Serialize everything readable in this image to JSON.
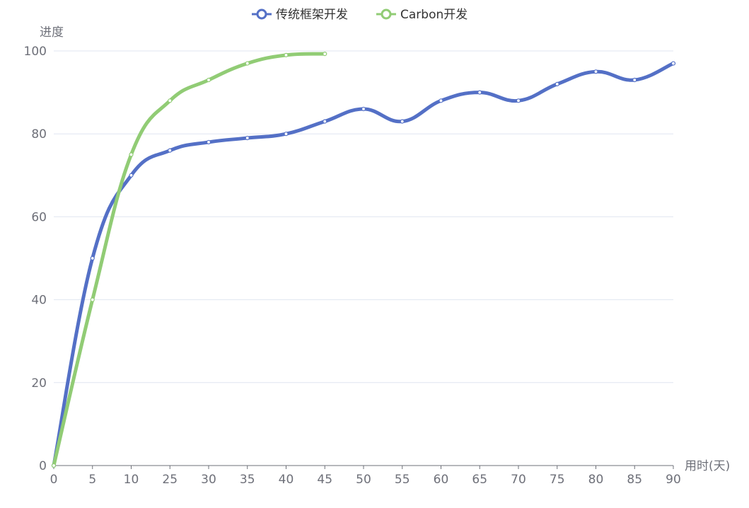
{
  "chart_data": {
    "type": "line",
    "smooth": true,
    "x": [
      0,
      5,
      10,
      25,
      30,
      35,
      40,
      45,
      50,
      55,
      60,
      65,
      70,
      75,
      80,
      85,
      90
    ],
    "xlabel": "用时(天)",
    "ylabel": "进度",
    "ylim": [
      0,
      100
    ],
    "yticks": [
      0,
      20,
      40,
      60,
      80,
      100
    ],
    "grid": true,
    "legend_position": "top-center",
    "series": [
      {
        "name": "传统框架开发",
        "color": "#5470c6",
        "values": [
          0,
          50,
          70,
          76,
          78,
          79,
          80,
          83,
          86,
          83,
          88,
          90,
          88,
          92,
          95,
          93,
          97
        ]
      },
      {
        "name": "Carbon开发",
        "color": "#91cc75",
        "values": [
          0,
          40,
          75,
          88,
          93,
          97,
          99,
          99.3,
          null,
          null,
          null,
          null,
          null,
          null,
          null,
          null,
          null
        ]
      }
    ]
  }
}
